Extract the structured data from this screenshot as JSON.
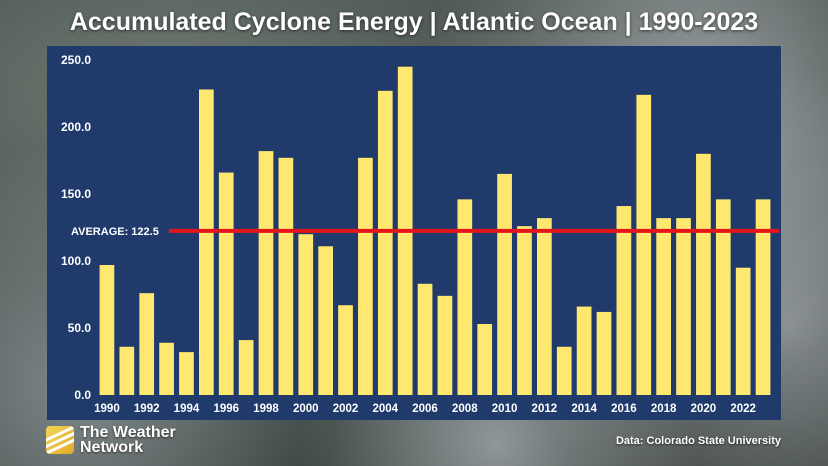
{
  "title": "Accumulated Cyclone Energy | Atlantic Ocean | 1990-2023",
  "logo": {
    "line1": "The Weather",
    "line2": "Network"
  },
  "source": "Data: Colorado State University",
  "colors": {
    "panel": "#1f3a6b",
    "bar": "#ffe870",
    "average_line": "#e3161b",
    "text": "#ffffff"
  },
  "chart_data": {
    "type": "bar",
    "title": "Accumulated Cyclone Energy | Atlantic Ocean | 1990-2023",
    "xlabel": "",
    "ylabel": "",
    "ylim": [
      0,
      250
    ],
    "yticks": [
      "0.0",
      "50.0",
      "100.0",
      "150.0",
      "200.0",
      "250.0"
    ],
    "ytick_values": [
      0,
      50,
      100,
      150,
      200,
      250
    ],
    "categories": [
      "1990",
      "1991",
      "1992",
      "1993",
      "1994",
      "1995",
      "1996",
      "1997",
      "1998",
      "1999",
      "2000",
      "2001",
      "2002",
      "2003",
      "2004",
      "2005",
      "2006",
      "2007",
      "2008",
      "2009",
      "2010",
      "2011",
      "2012",
      "2013",
      "2014",
      "2015",
      "2016",
      "2017",
      "2018",
      "2019",
      "2020",
      "2021",
      "2022",
      "2023"
    ],
    "xtick_labels": [
      "1990",
      "1992",
      "1994",
      "1996",
      "1998",
      "2000",
      "2002",
      "2004",
      "2006",
      "2008",
      "2010",
      "2012",
      "2014",
      "2016",
      "2018",
      "2020",
      "2022"
    ],
    "values": [
      97,
      36,
      76,
      39,
      32,
      228,
      166,
      41,
      182,
      177,
      120,
      111,
      67,
      177,
      227,
      245,
      83,
      74,
      146,
      53,
      165,
      126,
      132,
      36,
      66,
      62,
      141,
      224,
      132,
      132,
      180,
      146,
      95,
      146
    ],
    "average": {
      "label": "AVERAGE: 122.5",
      "value": 122.5
    },
    "grid": false,
    "legend": "none"
  }
}
